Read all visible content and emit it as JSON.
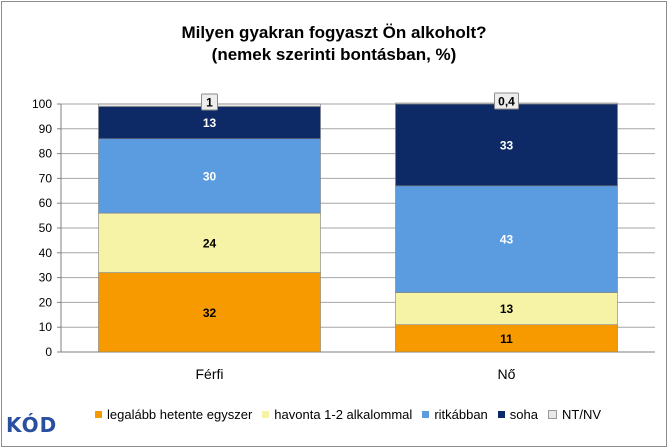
{
  "chart_data": {
    "type": "bar",
    "stacked": true,
    "title": "Milyen gyakran fogyaszt Ön alkoholt?",
    "subtitle": "(nemek szerinti bontásban, %)",
    "categories": [
      "Férfi",
      "Nő"
    ],
    "ylim": [
      0,
      100
    ],
    "yticks": [
      0,
      10,
      20,
      30,
      40,
      50,
      60,
      70,
      80,
      90,
      100
    ],
    "grid": true,
    "series": [
      {
        "name": "legalább hetente egyszer",
        "values": [
          32,
          11
        ],
        "color": "#F79A00",
        "label_color": "#000000"
      },
      {
        "name": "havonta 1-2 alkalommal",
        "values": [
          24,
          13
        ],
        "color": "#F7F3A6",
        "label_color": "#000000"
      },
      {
        "name": "ritkábban",
        "values": [
          30,
          43
        ],
        "color": "#5B9BE0",
        "label_color": "#FFFFFF"
      },
      {
        "name": "soha",
        "values": [
          13,
          33
        ],
        "color": "#0E2A66",
        "label_color": "#FFFFFF"
      },
      {
        "name": "NT/NV",
        "values": [
          1,
          0.4
        ],
        "color": "#E8E8E8",
        "label_color": "#000000"
      }
    ],
    "data_labels": [
      [
        "32",
        "24",
        "30",
        "13",
        "1"
      ],
      [
        "11",
        "13",
        "43",
        "33",
        "0,4"
      ]
    ],
    "legend_position": "bottom"
  },
  "logo": {
    "text": "KÓD"
  }
}
